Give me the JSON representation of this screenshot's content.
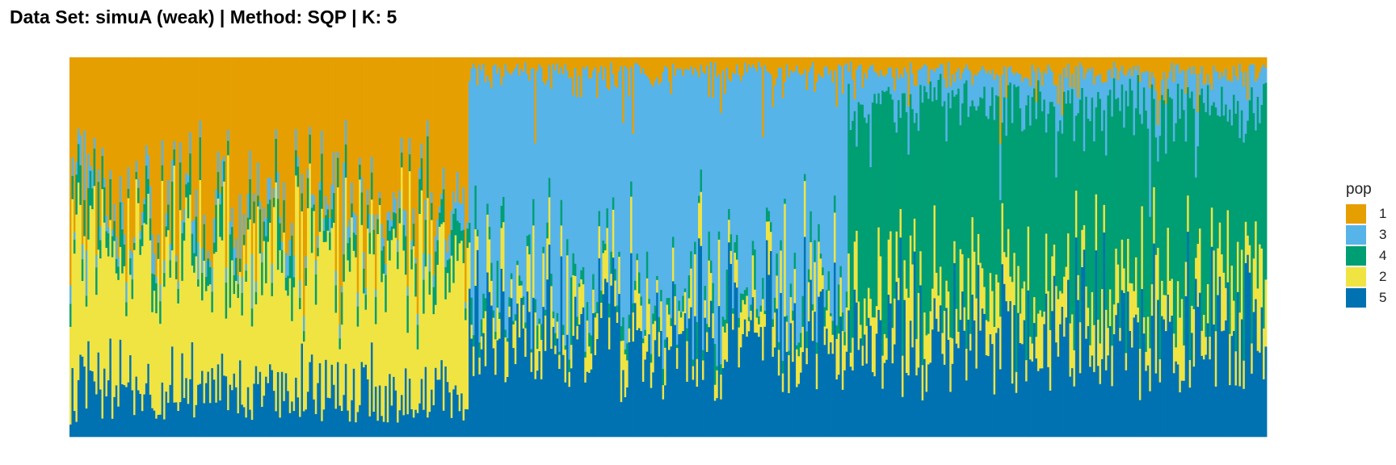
{
  "chart_data": {
    "type": "bar",
    "stacked": true,
    "title": "Data Set: simuA (weak) | Method: SQP | K: 5",
    "xlabel": "",
    "ylabel": "",
    "ylim": [
      0,
      1
    ],
    "grid": false,
    "legend": {
      "title": "pop",
      "placement": "right"
    },
    "stack_order_bottom_to_top": [
      "5",
      "2",
      "4",
      "3",
      "1"
    ],
    "legend_order": [
      "1",
      "3",
      "4",
      "2",
      "5"
    ],
    "colors": {
      "1": "#E69F00",
      "3": "#56B4E9",
      "4": "#009E73",
      "2": "#F0E442",
      "5": "#0072B2"
    },
    "n_bars": 600,
    "segments": [
      {
        "bars": [
          0,
          200
        ],
        "note": "individuals 1-200",
        "mean": {
          "5": 0.12,
          "2": 0.38,
          "4": 0.06,
          "3": 0.04,
          "1": 0.4
        }
      },
      {
        "bars": [
          200,
          390
        ],
        "note": "individuals 201-390",
        "mean": {
          "5": 0.26,
          "2": 0.08,
          "4": 0.03,
          "3": 0.59,
          "1": 0.04
        }
      },
      {
        "bars": [
          390,
          600
        ],
        "note": "individuals 391-600",
        "mean": {
          "5": 0.27,
          "2": 0.12,
          "4": 0.49,
          "3": 0.08,
          "1": 0.04
        }
      }
    ]
  }
}
